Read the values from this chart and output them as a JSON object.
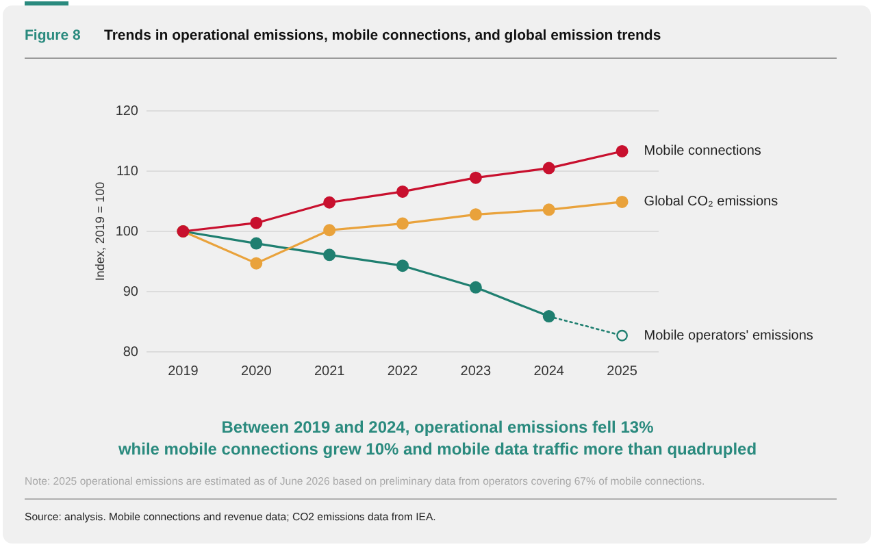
{
  "chart_data": {
    "type": "line",
    "title": "Trends in operational emissions, mobile connections, and global emission trends",
    "ylabel": "Index, 2019 = 100",
    "annotations": [
      "Figure 8",
      "Between 2019 and 2024, operational emissions fell 13%\nwhile mobile connections grew 10% and mobile data traffic more than quadrupled",
      "Note: 2025 operational emissions are estimated as of June 2026 based on preliminary data from operators covering 67% of mobile connections.",
      "Source: analysis. Mobile connections and revenue data; CO2 emissions data from IEA."
    ],
    "categories": [
      "2019",
      "2020",
      "2021",
      "2022",
      "2023",
      "2024",
      "2025"
    ],
    "series": [
      {
        "name": "Mobile connections",
        "color": "#c8102e",
        "values": [
          100,
          101.4,
          104.8,
          106.6,
          108.9,
          110.5,
          113.3
        ]
      },
      {
        "name": "Global CO₂ emissions",
        "color": "#e9a23b",
        "values": [
          100,
          94.7,
          100.2,
          101.3,
          102.8,
          103.6,
          104.9
        ]
      },
      {
        "color": "#1f7f70",
        "values": [
          100,
          98.0,
          96.1,
          94.3,
          90.7,
          85.9,
          null
        ]
      },
      {
        "name": "Mobile operators' emissions",
        "color": "#1f7f70",
        "values": [
          null,
          null,
          null,
          null,
          null,
          85.9,
          82.7
        ],
        "line_style": "dotted"
      }
    ],
    "ylim": [
      80,
      120
    ],
    "yticks": [
      80,
      90,
      100,
      110,
      120
    ],
    "grid": "y",
    "marker": "circle",
    "line_style": "solid"
  }
}
